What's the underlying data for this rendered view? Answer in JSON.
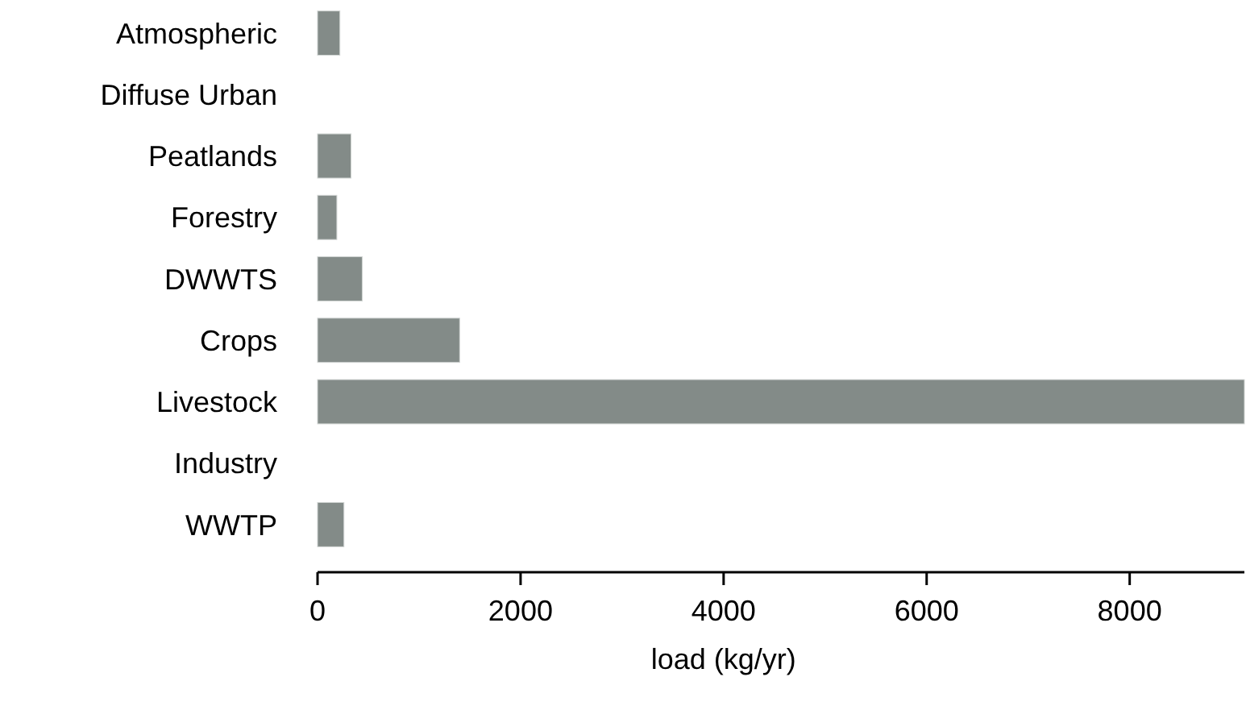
{
  "chart_data": {
    "type": "bar",
    "orientation": "horizontal",
    "xlabel": "load (kg/yr)",
    "categories": [
      "Atmospheric",
      "Diffuse Urban",
      "Peatlands",
      "Forestry",
      "DWWTS",
      "Crops",
      "Livestock",
      "Industry",
      "WWTP"
    ],
    "values": [
      220,
      0,
      330,
      190,
      440,
      1400,
      9130,
      0,
      260
    ],
    "color": "#838b88",
    "xlim": [
      0,
      9130
    ],
    "xticks": [
      0,
      2000,
      4000,
      6000,
      8000
    ],
    "grid": false
  }
}
